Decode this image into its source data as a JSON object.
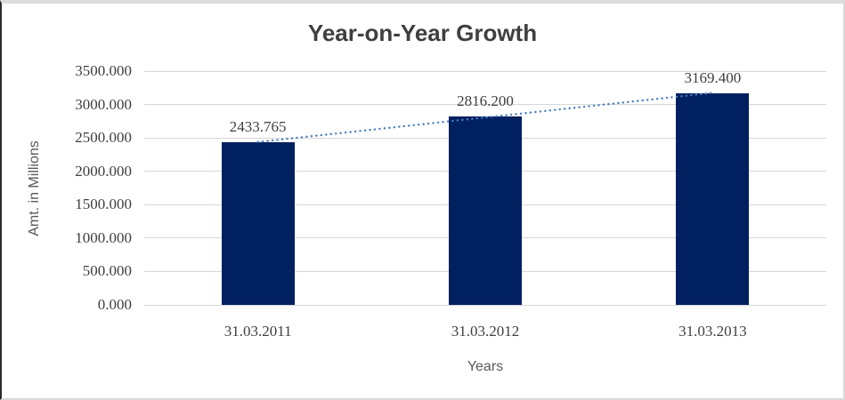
{
  "chart_data": {
    "type": "bar",
    "title": "Year-on-Year Growth",
    "xlabel": "Years",
    "ylabel": "Amt. in Millions",
    "categories": [
      "31.03.2011",
      "31.03.2012",
      "31.03.2013"
    ],
    "values": [
      2433.765,
      2816.2,
      3169.4
    ],
    "data_labels": [
      "2433.765",
      "2816.200",
      "3169.400"
    ],
    "ylim": [
      0,
      3500
    ],
    "ytick_step": 500,
    "ytick_labels": [
      "0.000",
      "500.000",
      "1000.000",
      "1500.000",
      "2000.000",
      "2500.000",
      "3000.000",
      "3500.000"
    ],
    "grid": true,
    "legend_position": "none",
    "trendline": {
      "type": "linear",
      "style": "dotted"
    },
    "colors": {
      "bar": "#002060",
      "trendline": "#4a7ec1",
      "gridline": "#d6d6d6",
      "title": "#3f3f3f",
      "tick_label": "#3f3f3f",
      "axis_title": "#595959"
    }
  }
}
